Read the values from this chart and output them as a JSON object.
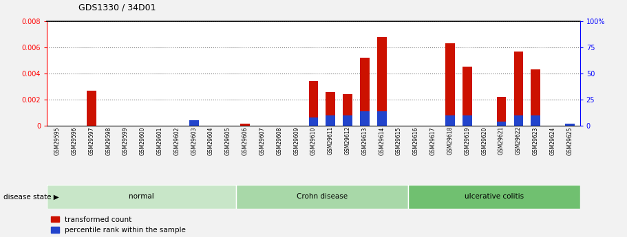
{
  "title": "GDS1330 / 34D01",
  "samples": [
    "GSM29595",
    "GSM29596",
    "GSM29597",
    "GSM29598",
    "GSM29599",
    "GSM29600",
    "GSM29601",
    "GSM29602",
    "GSM29603",
    "GSM29604",
    "GSM29605",
    "GSM29606",
    "GSM29607",
    "GSM29608",
    "GSM29609",
    "GSM29610",
    "GSM29611",
    "GSM29612",
    "GSM29613",
    "GSM29614",
    "GSM29615",
    "GSM29616",
    "GSM29617",
    "GSM29618",
    "GSM29619",
    "GSM29620",
    "GSM29621",
    "GSM29622",
    "GSM29623",
    "GSM29624",
    "GSM29625"
  ],
  "transformed_count": [
    0.0,
    0.0,
    0.0027,
    0.0,
    0.0,
    0.0,
    0.0,
    0.0,
    0.00035,
    0.0,
    0.0,
    0.00015,
    0.0,
    0.0,
    0.0,
    0.0034,
    0.0026,
    0.0024,
    0.0052,
    0.0068,
    0.0,
    0.0,
    0.0,
    0.0063,
    0.0045,
    0.0,
    0.0022,
    0.0057,
    0.0043,
    0.0,
    0.0
  ],
  "percentile_rank_pct": [
    0,
    0,
    0,
    0,
    0,
    0,
    0,
    0,
    5,
    0,
    0,
    0,
    0,
    0,
    0,
    8,
    10,
    10,
    14,
    14,
    0,
    0,
    0,
    10,
    10,
    0,
    4,
    10,
    10,
    0,
    2
  ],
  "groups": [
    {
      "label": "normal",
      "start": 0,
      "end": 11,
      "color": "#c8e6c8"
    },
    {
      "label": "Crohn disease",
      "start": 11,
      "end": 21,
      "color": "#a8d8a8"
    },
    {
      "label": "ulcerative colitis",
      "start": 21,
      "end": 31,
      "color": "#70c070"
    }
  ],
  "ylim_left": [
    0.0,
    0.008
  ],
  "ylim_right": [
    0,
    100
  ],
  "yticks_left": [
    0.0,
    0.002,
    0.004,
    0.006,
    0.008
  ],
  "yticks_right": [
    0,
    25,
    50,
    75,
    100
  ],
  "bar_color": "#cc1100",
  "blue_color": "#2244cc",
  "grid_color": "#777777",
  "bg_color": "#f2f2f2",
  "plot_bg": "#ffffff",
  "legend_items": [
    "transformed count",
    "percentile rank within the sample"
  ],
  "disease_state_label": "disease state"
}
